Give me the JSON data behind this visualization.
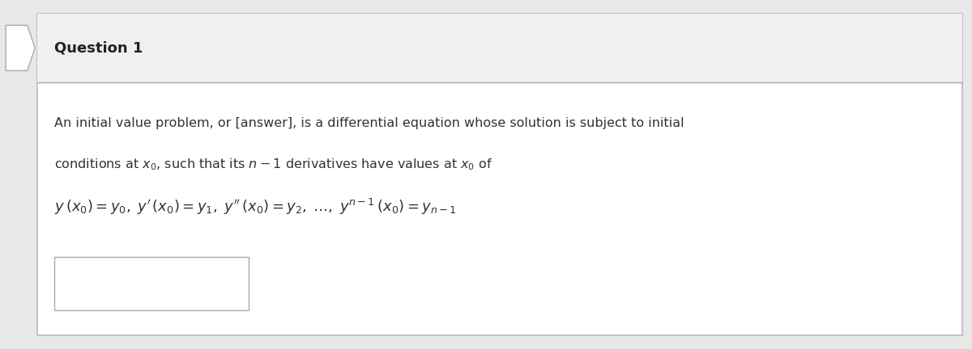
{
  "title": "Question 1",
  "fig_bg": "#e8e8e8",
  "card_bg": "#ffffff",
  "card_edge": "#bbbbbb",
  "header_bg": "#f0f0f0",
  "header_edge": "#aaaaaa",
  "title_fontsize": 13,
  "title_color": "#222222",
  "text_line1": "An initial value problem, or [answer], is a differential equation whose solution is subject to initial",
  "text_line2": "conditions at $x_0$, such that its $n - 1$ derivatives have values at $x_0$ of",
  "text_math": "$y\\,(x_0) = y_0,\\; y'\\,(x_0) = y_1,\\; y''\\,(x_0) = y_2,\\; \\ldots,\\; y^{n-1}\\,(x_0) = y_{n-1}$",
  "text_fontsize": 11.5,
  "math_fontsize": 13,
  "body_text_color": "#333333",
  "ansbox_edge": "#aaaaaa",
  "left_arrow_color": "#cccccc"
}
